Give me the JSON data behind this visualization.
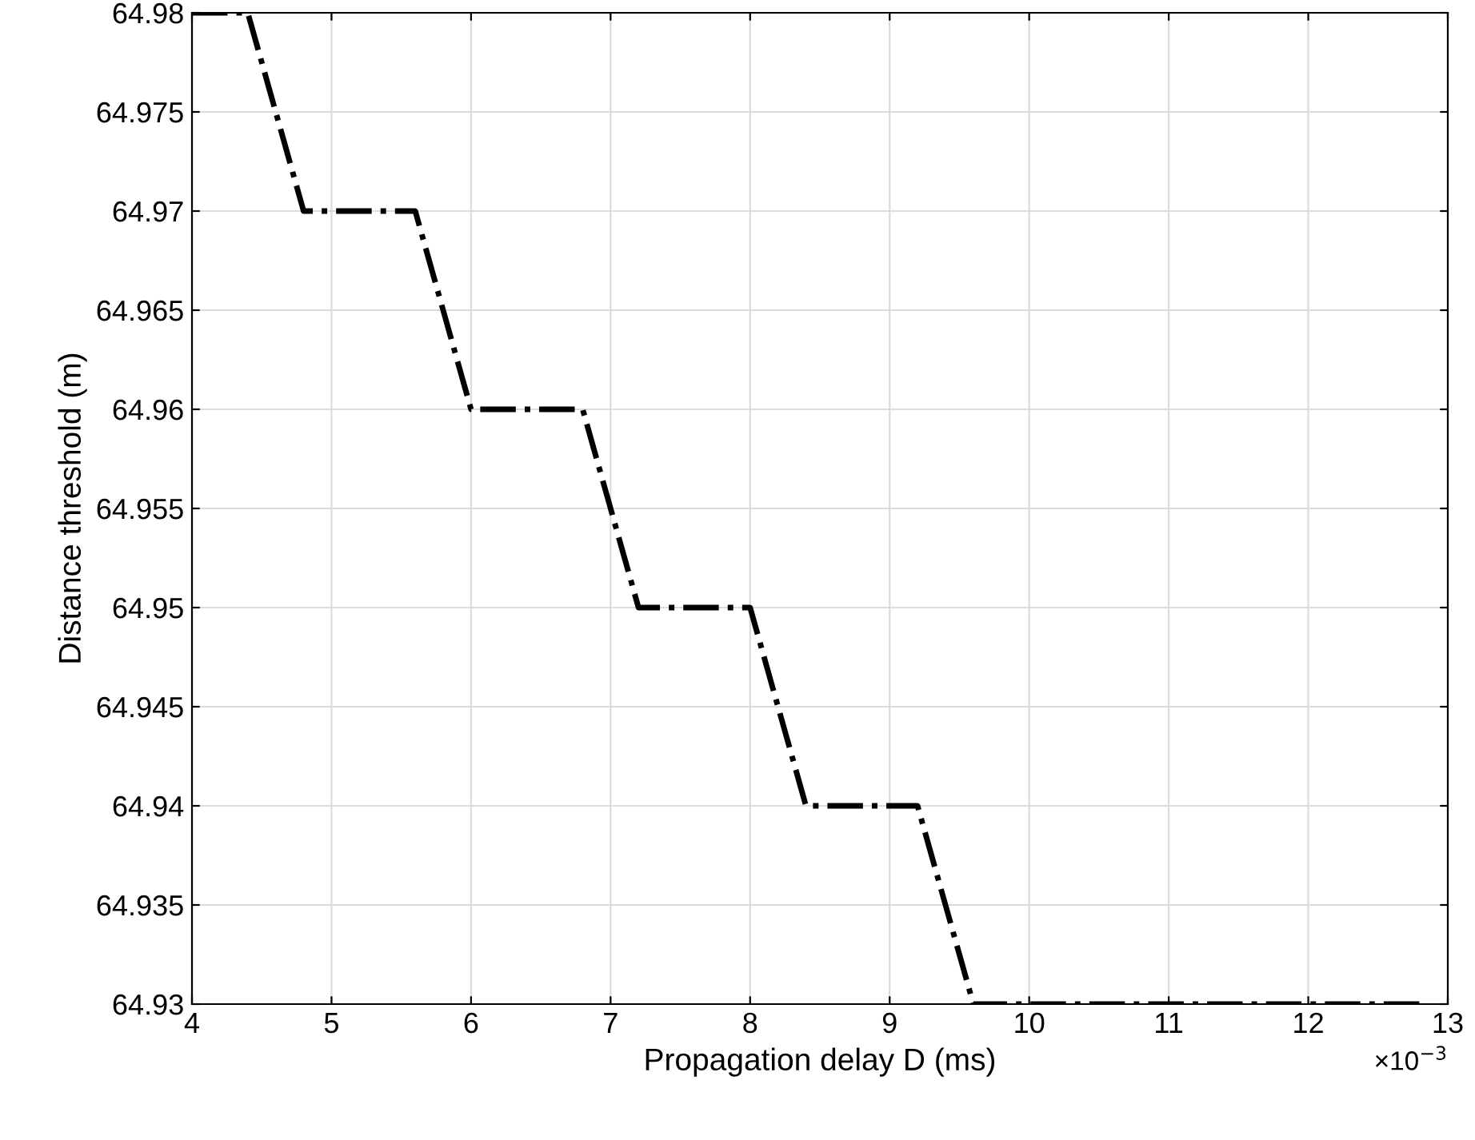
{
  "chart_data": {
    "type": "line",
    "xlabel": "Propagation delay D (ms)",
    "ylabel": "Distance threshold (m)",
    "x": [
      4,
      4.4,
      4.8,
      5.6,
      6.0,
      6.8,
      7.2,
      8.0,
      8.4,
      9.2,
      9.6,
      12.8
    ],
    "series": [
      {
        "color": "#000000",
        "values": [
          64.98,
          64.98,
          64.97,
          64.97,
          64.96,
          64.96,
          64.95,
          64.95,
          64.94,
          64.94,
          64.93,
          64.93
        ]
      }
    ],
    "xlim": [
      4,
      13
    ],
    "xticks": [
      4,
      5,
      6,
      7,
      8,
      9,
      10,
      11,
      12,
      13
    ],
    "ylim": [
      64.93,
      64.98
    ],
    "yticks": [
      64.93,
      64.935,
      64.94,
      64.945,
      64.95,
      64.955,
      64.96,
      64.965,
      64.97,
      64.975,
      64.98
    ],
    "grid": true,
    "line_style": "dashdot",
    "marker": "none",
    "annotations": [
      "×10$^{−3}$"
    ]
  }
}
